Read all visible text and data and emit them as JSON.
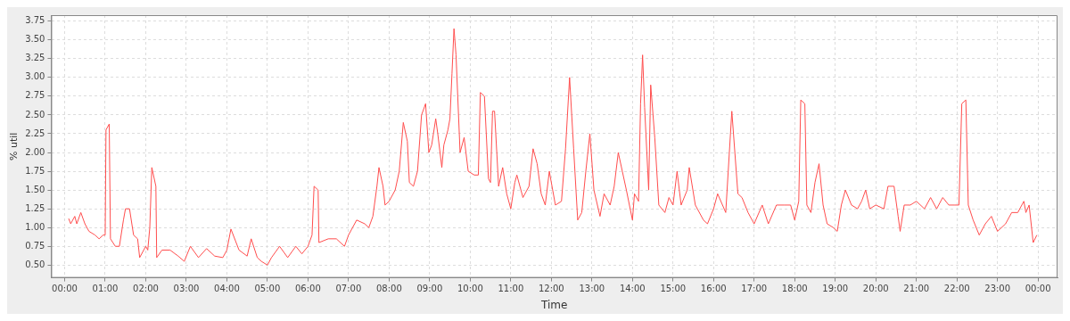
{
  "chart_data": {
    "type": "line",
    "xlabel": "Time",
    "ylabel": "% util",
    "grid": true,
    "legend": false,
    "marker": "none",
    "line_style": "solid",
    "xlim": [
      -0.33,
      24.48
    ],
    "ylim": [
      0.33,
      3.83
    ],
    "xticks": [
      {
        "value": 0,
        "label": "00:00"
      },
      {
        "value": 1,
        "label": "01:00"
      },
      {
        "value": 2,
        "label": "02:00"
      },
      {
        "value": 3,
        "label": "03:00"
      },
      {
        "value": 4,
        "label": "04:00"
      },
      {
        "value": 5,
        "label": "05:00"
      },
      {
        "value": 6,
        "label": "06:00"
      },
      {
        "value": 7,
        "label": "07:00"
      },
      {
        "value": 8,
        "label": "08:00"
      },
      {
        "value": 9,
        "label": "09:00"
      },
      {
        "value": 10,
        "label": "10:00"
      },
      {
        "value": 11,
        "label": "11:00"
      },
      {
        "value": 12,
        "label": "12:00"
      },
      {
        "value": 13,
        "label": "13:00"
      },
      {
        "value": 14,
        "label": "14:00"
      },
      {
        "value": 15,
        "label": "15:00"
      },
      {
        "value": 16,
        "label": "16:00"
      },
      {
        "value": 17,
        "label": "17:00"
      },
      {
        "value": 18,
        "label": "18:00"
      },
      {
        "value": 19,
        "label": "19:00"
      },
      {
        "value": 20,
        "label": "20:00"
      },
      {
        "value": 21,
        "label": "21:00"
      },
      {
        "value": 22,
        "label": "22:00"
      },
      {
        "value": 23,
        "label": "23:00"
      },
      {
        "value": 24,
        "label": "00:00"
      }
    ],
    "yticks": [
      {
        "value": 0.5,
        "label": "0.50"
      },
      {
        "value": 0.75,
        "label": "0.75"
      },
      {
        "value": 1,
        "label": "1.00"
      },
      {
        "value": 1.25,
        "label": "1.25"
      },
      {
        "value": 1.5,
        "label": "1.50"
      },
      {
        "value": 1.75,
        "label": "1.75"
      },
      {
        "value": 2,
        "label": "2.00"
      },
      {
        "value": 2.25,
        "label": "2.25"
      },
      {
        "value": 2.5,
        "label": "2.50"
      },
      {
        "value": 2.75,
        "label": "2.75"
      },
      {
        "value": 3,
        "label": "3.00"
      },
      {
        "value": 3.25,
        "label": "3.25"
      },
      {
        "value": 3.5,
        "label": "3.50"
      },
      {
        "value": 3.75,
        "label": "3.75"
      }
    ],
    "x": [
      0.1,
      0.15,
      0.25,
      0.3,
      0.4,
      0.5,
      0.6,
      0.75,
      0.85,
      0.95,
      1.0,
      1.02,
      1.1,
      1.13,
      1.25,
      1.35,
      1.45,
      1.5,
      1.6,
      1.7,
      1.8,
      1.85,
      2.0,
      2.05,
      2.1,
      2.15,
      2.25,
      2.27,
      2.4,
      2.6,
      2.8,
      2.95,
      3.1,
      3.3,
      3.5,
      3.7,
      3.9,
      4.0,
      4.1,
      4.3,
      4.5,
      4.6,
      4.75,
      4.85,
      5.0,
      5.1,
      5.3,
      5.5,
      5.7,
      5.85,
      6.0,
      6.1,
      6.15,
      6.25,
      6.27,
      6.5,
      6.7,
      6.9,
      7.0,
      7.2,
      7.4,
      7.5,
      7.6,
      7.7,
      7.75,
      7.85,
      7.9,
      8.0,
      8.15,
      8.25,
      8.35,
      8.45,
      8.5,
      8.6,
      8.7,
      8.8,
      8.9,
      8.98,
      9.05,
      9.15,
      9.2,
      9.3,
      9.35,
      9.45,
      9.5,
      9.55,
      9.6,
      9.65,
      9.75,
      9.85,
      9.95,
      10.1,
      10.2,
      10.25,
      10.35,
      10.45,
      10.5,
      10.55,
      10.6,
      10.7,
      10.8,
      10.9,
      11.0,
      11.1,
      11.15,
      11.3,
      11.45,
      11.55,
      11.65,
      11.75,
      11.85,
      11.95,
      12.1,
      12.25,
      12.35,
      12.45,
      12.55,
      12.65,
      12.75,
      12.85,
      12.95,
      13.05,
      13.2,
      13.3,
      13.45,
      13.55,
      13.65,
      13.75,
      13.85,
      14.0,
      14.05,
      14.15,
      14.2,
      14.25,
      14.3,
      14.4,
      14.45,
      14.55,
      14.65,
      14.8,
      14.9,
      15.0,
      15.1,
      15.2,
      15.35,
      15.4,
      15.55,
      15.75,
      15.85,
      16.0,
      16.1,
      16.3,
      16.45,
      16.6,
      16.7,
      16.85,
      17.0,
      17.2,
      17.35,
      17.55,
      17.75,
      17.9,
      18.0,
      18.1,
      18.15,
      18.25,
      18.3,
      18.4,
      18.5,
      18.6,
      18.7,
      18.8,
      18.95,
      19.05,
      19.15,
      19.25,
      19.4,
      19.55,
      19.65,
      19.75,
      19.85,
      20.0,
      20.2,
      20.3,
      20.45,
      20.55,
      20.6,
      20.7,
      20.85,
      21.0,
      21.2,
      21.35,
      21.5,
      21.65,
      21.8,
      21.95,
      22.05,
      22.12,
      22.22,
      22.28,
      22.4,
      22.55,
      22.7,
      22.85,
      23.0,
      23.2,
      23.35,
      23.5,
      23.65,
      23.7,
      23.78,
      23.88,
      23.97
    ],
    "series": [
      {
        "color": "#ff4d4d",
        "values": [
          1.12,
          1.05,
          1.15,
          1.05,
          1.2,
          1.05,
          0.95,
          0.9,
          0.85,
          0.9,
          0.9,
          2.3,
          2.38,
          0.85,
          0.75,
          0.75,
          1.1,
          1.25,
          1.25,
          0.9,
          0.85,
          0.6,
          0.75,
          0.7,
          1.0,
          1.8,
          1.55,
          0.6,
          0.7,
          0.7,
          0.62,
          0.55,
          0.75,
          0.6,
          0.72,
          0.62,
          0.6,
          0.7,
          0.98,
          0.7,
          0.62,
          0.85,
          0.6,
          0.55,
          0.5,
          0.6,
          0.75,
          0.6,
          0.75,
          0.65,
          0.75,
          0.9,
          1.55,
          1.5,
          0.8,
          0.85,
          0.85,
          0.75,
          0.9,
          1.1,
          1.05,
          1.0,
          1.15,
          1.55,
          1.8,
          1.55,
          1.3,
          1.35,
          1.5,
          1.75,
          2.4,
          2.15,
          1.6,
          1.55,
          1.75,
          2.5,
          2.65,
          2.0,
          2.1,
          2.45,
          2.25,
          1.8,
          2.1,
          2.3,
          2.45,
          3.05,
          3.65,
          3.3,
          2.0,
          2.2,
          1.75,
          1.7,
          1.7,
          2.8,
          2.75,
          1.65,
          1.6,
          2.55,
          2.55,
          1.55,
          1.8,
          1.45,
          1.25,
          1.6,
          1.7,
          1.4,
          1.55,
          2.05,
          1.85,
          1.45,
          1.3,
          1.75,
          1.3,
          1.35,
          2.05,
          3.0,
          2.05,
          1.1,
          1.2,
          1.75,
          2.25,
          1.5,
          1.15,
          1.45,
          1.3,
          1.55,
          2.0,
          1.75,
          1.5,
          1.1,
          1.45,
          1.35,
          2.65,
          3.3,
          2.6,
          1.5,
          2.9,
          2.2,
          1.3,
          1.2,
          1.4,
          1.3,
          1.75,
          1.3,
          1.5,
          1.8,
          1.3,
          1.1,
          1.05,
          1.25,
          1.45,
          1.2,
          2.55,
          1.45,
          1.4,
          1.2,
          1.05,
          1.3,
          1.05,
          1.3,
          1.3,
          1.3,
          1.1,
          1.35,
          2.7,
          2.65,
          1.3,
          1.2,
          1.6,
          1.85,
          1.3,
          1.05,
          1.0,
          0.95,
          1.3,
          1.5,
          1.3,
          1.25,
          1.35,
          1.5,
          1.25,
          1.3,
          1.25,
          1.55,
          1.55,
          1.15,
          0.95,
          1.3,
          1.3,
          1.35,
          1.25,
          1.4,
          1.25,
          1.4,
          1.3,
          1.3,
          1.3,
          2.65,
          2.7,
          1.3,
          1.1,
          0.9,
          1.05,
          1.15,
          0.95,
          1.05,
          1.2,
          1.2,
          1.35,
          1.2,
          1.3,
          0.8,
          0.9
        ]
      }
    ]
  }
}
